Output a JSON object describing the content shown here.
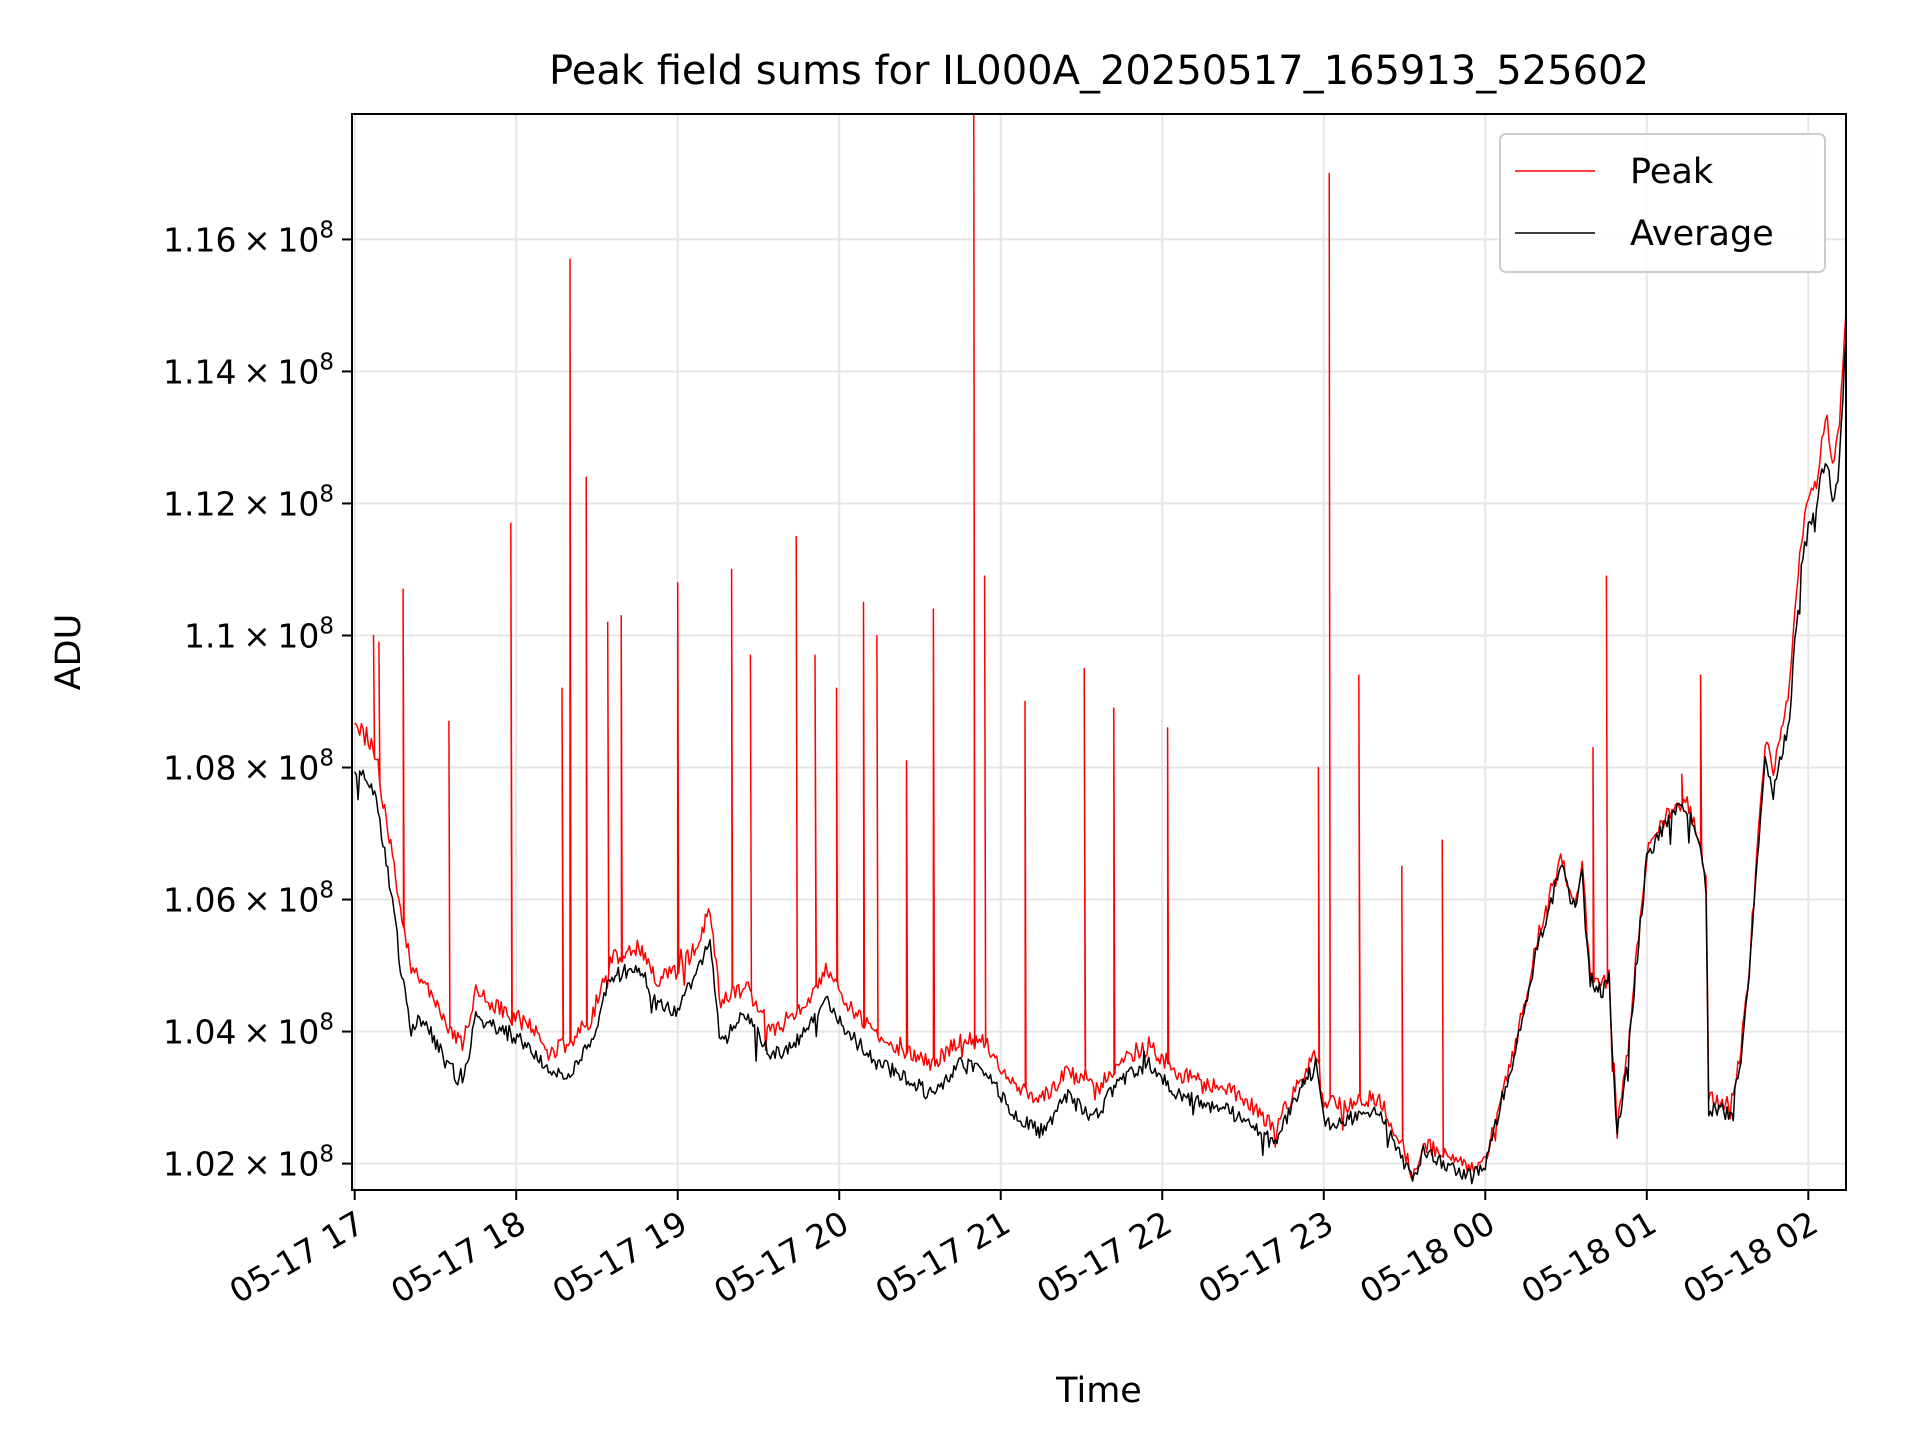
{
  "chart_data": {
    "type": "line",
    "title": "Peak field sums for IL000A_20250517_165913_525602",
    "xlabel": "Time",
    "ylabel": "ADU",
    "xlim": [
      "2025-05-17 16:59",
      "2025-05-18 02:14"
    ],
    "ylim": [
      101600000,
      117900000
    ],
    "x_ticks": [
      "2025-05-17 17:00",
      "2025-05-17 18:00",
      "2025-05-17 19:00",
      "2025-05-17 20:00",
      "2025-05-17 21:00",
      "2025-05-17 22:00",
      "2025-05-17 23:00",
      "2025-05-18 00:00",
      "2025-05-18 01:00",
      "2025-05-18 02:00"
    ],
    "x_tick_labels": [
      "05-17 17",
      "05-17 18",
      "05-17 19",
      "05-17 20",
      "05-17 21",
      "05-17 22",
      "05-17 23",
      "05-18 00",
      "05-18 01",
      "05-18 02"
    ],
    "y_ticks": [
      102000000,
      104000000,
      106000000,
      108000000,
      110000000,
      112000000,
      114000000,
      116000000
    ],
    "y_tick_labels": [
      {
        "mantissa": "1.02",
        "base": "10",
        "exp": "8"
      },
      {
        "mantissa": "1.04",
        "base": "10",
        "exp": "8"
      },
      {
        "mantissa": "1.06",
        "base": "10",
        "exp": "8"
      },
      {
        "mantissa": "1.08",
        "base": "10",
        "exp": "8"
      },
      {
        "mantissa": "1.1",
        "base": "10",
        "exp": "8"
      },
      {
        "mantissa": "1.12",
        "base": "10",
        "exp": "8"
      },
      {
        "mantissa": "1.14",
        "base": "10",
        "exp": "8"
      },
      {
        "mantissa": "1.16",
        "base": "10",
        "exp": "8"
      }
    ],
    "grid": true,
    "legend_position": "top-right",
    "series": [
      {
        "name": "Peak",
        "color": "#ff0000",
        "points": [
          [
            "2025-05-17 17:00",
            108700000
          ],
          [
            "2025-05-17 17:05",
            108400000
          ],
          [
            "2025-05-17 17:08",
            108200000
          ],
          [
            "2025-05-17 17:10",
            107600000
          ],
          [
            "2025-05-17 17:14",
            106700000
          ],
          [
            "2025-05-17 17:17",
            105800000
          ],
          [
            "2025-05-17 17:21",
            105000000
          ],
          [
            "2025-05-17 17:26",
            104700000
          ],
          [
            "2025-05-17 17:33",
            104200000
          ],
          [
            "2025-05-17 17:40",
            103800000
          ],
          [
            "2025-05-17 17:45",
            104600000
          ],
          [
            "2025-05-17 17:55",
            104300000
          ],
          [
            "2025-05-17 18:05",
            104100000
          ],
          [
            "2025-05-17 18:12",
            103700000
          ],
          [
            "2025-05-17 18:20",
            103800000
          ],
          [
            "2025-05-17 18:28",
            104200000
          ],
          [
            "2025-05-17 18:35",
            105100000
          ],
          [
            "2025-05-17 18:45",
            105300000
          ],
          [
            "2025-05-17 18:52",
            104800000
          ],
          [
            "2025-05-17 19:00",
            104900000
          ],
          [
            "2025-05-17 19:08",
            105400000
          ],
          [
            "2025-05-17 19:12",
            105900000
          ],
          [
            "2025-05-17 19:16",
            104400000
          ],
          [
            "2025-05-17 19:25",
            104700000
          ],
          [
            "2025-05-17 19:35",
            104000000
          ],
          [
            "2025-05-17 19:45",
            104300000
          ],
          [
            "2025-05-17 19:55",
            104900000
          ],
          [
            "2025-05-17 20:05",
            104300000
          ],
          [
            "2025-05-17 20:15",
            103900000
          ],
          [
            "2025-05-17 20:25",
            103700000
          ],
          [
            "2025-05-17 20:35",
            103500000
          ],
          [
            "2025-05-17 20:45",
            103900000
          ],
          [
            "2025-05-17 20:55",
            103800000
          ],
          [
            "2025-05-17 21:05",
            103200000
          ],
          [
            "2025-05-17 21:15",
            103000000
          ],
          [
            "2025-05-17 21:25",
            103400000
          ],
          [
            "2025-05-17 21:35",
            103100000
          ],
          [
            "2025-05-17 21:45",
            103600000
          ],
          [
            "2025-05-17 21:55",
            103800000
          ],
          [
            "2025-05-17 22:05",
            103400000
          ],
          [
            "2025-05-17 22:15",
            103200000
          ],
          [
            "2025-05-17 22:25",
            103100000
          ],
          [
            "2025-05-17 22:35",
            102800000
          ],
          [
            "2025-05-17 22:42",
            102500000
          ],
          [
            "2025-05-17 22:50",
            103200000
          ],
          [
            "2025-05-17 22:57",
            103700000
          ],
          [
            "2025-05-17 23:00",
            102900000
          ],
          [
            "2025-05-17 23:10",
            102900000
          ],
          [
            "2025-05-17 23:20",
            103000000
          ],
          [
            "2025-05-17 23:28",
            102400000
          ],
          [
            "2025-05-17 23:33",
            101800000
          ],
          [
            "2025-05-17 23:37",
            102300000
          ],
          [
            "2025-05-17 23:45",
            102100000
          ],
          [
            "2025-05-17 23:55",
            101900000
          ],
          [
            "2025-05-18 00:00",
            102100000
          ],
          [
            "2025-05-18 00:05",
            102900000
          ],
          [
            "2025-05-18 00:10",
            103600000
          ],
          [
            "2025-05-18 00:15",
            104500000
          ],
          [
            "2025-05-18 00:20",
            105500000
          ],
          [
            "2025-05-18 00:25",
            106100000
          ],
          [
            "2025-05-18 00:28",
            106700000
          ],
          [
            "2025-05-18 00:31",
            106200000
          ],
          [
            "2025-05-18 00:34",
            106000000
          ],
          [
            "2025-05-18 00:36",
            106500000
          ],
          [
            "2025-05-18 00:39",
            104900000
          ],
          [
            "2025-05-18 00:43",
            104700000
          ],
          [
            "2025-05-18 00:46",
            104800000
          ],
          [
            "2025-05-18 00:49",
            102500000
          ],
          [
            "2025-05-18 00:53",
            103700000
          ],
          [
            "2025-05-18 00:57",
            105500000
          ],
          [
            "2025-05-18 01:00",
            106700000
          ],
          [
            "2025-05-18 01:05",
            107100000
          ],
          [
            "2025-05-18 01:10",
            107400000
          ],
          [
            "2025-05-18 01:15",
            107500000
          ],
          [
            "2025-05-18 01:20",
            106800000
          ],
          [
            "2025-05-18 01:22",
            106300000
          ],
          [
            "2025-05-18 01:23",
            103000000
          ],
          [
            "2025-05-18 01:28",
            102900000
          ],
          [
            "2025-05-18 01:31",
            102800000
          ],
          [
            "2025-05-18 01:35",
            103700000
          ],
          [
            "2025-05-18 01:38",
            105000000
          ],
          [
            "2025-05-18 01:41",
            106700000
          ],
          [
            "2025-05-18 01:44",
            108400000
          ],
          [
            "2025-05-18 01:47",
            108000000
          ],
          [
            "2025-05-18 01:50",
            108600000
          ],
          [
            "2025-05-18 01:53",
            109200000
          ],
          [
            "2025-05-18 01:55",
            110400000
          ],
          [
            "2025-05-18 01:58",
            111600000
          ],
          [
            "2025-05-18 02:00",
            112000000
          ],
          [
            "2025-05-18 02:03",
            112300000
          ],
          [
            "2025-05-18 02:05",
            112900000
          ],
          [
            "2025-05-18 02:07",
            113300000
          ],
          [
            "2025-05-18 02:09",
            112600000
          ],
          [
            "2025-05-18 02:11",
            113000000
          ],
          [
            "2025-05-18 02:14",
            114900000
          ]
        ],
        "spikes": [
          [
            "2025-05-17 17:07",
            110000000
          ],
          [
            "2025-05-17 17:09",
            109900000
          ],
          [
            "2025-05-17 17:18",
            110700000
          ],
          [
            "2025-05-17 17:35",
            108700000
          ],
          [
            "2025-05-17 17:58",
            111700000
          ],
          [
            "2025-05-17 18:17",
            109200000
          ],
          [
            "2025-05-17 18:20",
            115700000
          ],
          [
            "2025-05-17 18:26",
            112400000
          ],
          [
            "2025-05-17 18:34",
            110200000
          ],
          [
            "2025-05-17 18:39",
            110300000
          ],
          [
            "2025-05-17 19:00",
            110800000
          ],
          [
            "2025-05-17 19:20",
            111000000
          ],
          [
            "2025-05-17 19:27",
            109700000
          ],
          [
            "2025-05-17 19:44",
            111500000
          ],
          [
            "2025-05-17 19:51",
            109700000
          ],
          [
            "2025-05-17 19:59",
            109200000
          ],
          [
            "2025-05-17 20:09",
            110500000
          ],
          [
            "2025-05-17 20:14",
            110000000
          ],
          [
            "2025-05-17 20:25",
            108100000
          ],
          [
            "2025-05-17 20:35",
            110400000
          ],
          [
            "2025-05-17 20:50",
            117900000
          ],
          [
            "2025-05-17 20:54",
            110900000
          ],
          [
            "2025-05-17 21:09",
            109000000
          ],
          [
            "2025-05-17 21:31",
            109500000
          ],
          [
            "2025-05-17 21:42",
            108900000
          ],
          [
            "2025-05-17 22:02",
            108600000
          ],
          [
            "2025-05-17 22:58",
            108000000
          ],
          [
            "2025-05-17 23:02",
            117000000
          ],
          [
            "2025-05-17 23:13",
            109400000
          ],
          [
            "2025-05-17 23:29",
            106500000
          ],
          [
            "2025-05-17 23:44",
            106900000
          ],
          [
            "2025-05-18 00:40",
            108300000
          ],
          [
            "2025-05-18 00:45",
            110900000
          ],
          [
            "2025-05-18 01:13",
            107900000
          ],
          [
            "2025-05-18 01:20",
            109400000
          ]
        ]
      },
      {
        "name": "Average",
        "color": "#000000",
        "points": [
          [
            "2025-05-17 17:00",
            108000000
          ],
          [
            "2025-05-17 17:05",
            107800000
          ],
          [
            "2025-05-17 17:08",
            107500000
          ],
          [
            "2025-05-17 17:10",
            107000000
          ],
          [
            "2025-05-17 17:14",
            106000000
          ],
          [
            "2025-05-17 17:17",
            105000000
          ],
          [
            "2025-05-17 17:21",
            104000000
          ],
          [
            "2025-05-17 17:26",
            104200000
          ],
          [
            "2025-05-17 17:33",
            103600000
          ],
          [
            "2025-05-17 17:40",
            103200000
          ],
          [
            "2025-05-17 17:45",
            104200000
          ],
          [
            "2025-05-17 17:55",
            104000000
          ],
          [
            "2025-05-17 18:05",
            103800000
          ],
          [
            "2025-05-17 18:12",
            103400000
          ],
          [
            "2025-05-17 18:20",
            103300000
          ],
          [
            "2025-05-17 18:28",
            103900000
          ],
          [
            "2025-05-17 18:35",
            104800000
          ],
          [
            "2025-05-17 18:45",
            105000000
          ],
          [
            "2025-05-17 18:52",
            104400000
          ],
          [
            "2025-05-17 19:00",
            104300000
          ],
          [
            "2025-05-17 19:08",
            105000000
          ],
          [
            "2025-05-17 19:12",
            105400000
          ],
          [
            "2025-05-17 19:16",
            103800000
          ],
          [
            "2025-05-17 19:25",
            104300000
          ],
          [
            "2025-05-17 19:35",
            103600000
          ],
          [
            "2025-05-17 19:45",
            103900000
          ],
          [
            "2025-05-17 19:55",
            104500000
          ],
          [
            "2025-05-17 20:05",
            103900000
          ],
          [
            "2025-05-17 20:15",
            103500000
          ],
          [
            "2025-05-17 20:25",
            103300000
          ],
          [
            "2025-05-17 20:35",
            103000000
          ],
          [
            "2025-05-17 20:45",
            103500000
          ],
          [
            "2025-05-17 20:55",
            103400000
          ],
          [
            "2025-05-17 21:05",
            102700000
          ],
          [
            "2025-05-17 21:15",
            102500000
          ],
          [
            "2025-05-17 21:25",
            103000000
          ],
          [
            "2025-05-17 21:35",
            102700000
          ],
          [
            "2025-05-17 21:45",
            103300000
          ],
          [
            "2025-05-17 21:55",
            103500000
          ],
          [
            "2025-05-17 22:05",
            103100000
          ],
          [
            "2025-05-17 22:15",
            102900000
          ],
          [
            "2025-05-17 22:25",
            102800000
          ],
          [
            "2025-05-17 22:35",
            102500000
          ],
          [
            "2025-05-17 22:42",
            102300000
          ],
          [
            "2025-05-17 22:50",
            103000000
          ],
          [
            "2025-05-17 22:57",
            103500000
          ],
          [
            "2025-05-17 23:00",
            102600000
          ],
          [
            "2025-05-17 23:10",
            102700000
          ],
          [
            "2025-05-17 23:20",
            102800000
          ],
          [
            "2025-05-17 23:28",
            102200000
          ],
          [
            "2025-05-17 23:33",
            101700000
          ],
          [
            "2025-05-17 23:37",
            102200000
          ],
          [
            "2025-05-17 23:45",
            102000000
          ],
          [
            "2025-05-17 23:55",
            101800000
          ],
          [
            "2025-05-18 00:00",
            102000000
          ],
          [
            "2025-05-18 00:05",
            102800000
          ],
          [
            "2025-05-18 00:10",
            103500000
          ],
          [
            "2025-05-18 00:15",
            104400000
          ],
          [
            "2025-05-18 00:20",
            105400000
          ],
          [
            "2025-05-18 00:25",
            106000000
          ],
          [
            "2025-05-18 00:28",
            106600000
          ],
          [
            "2025-05-18 00:31",
            106100000
          ],
          [
            "2025-05-18 00:34",
            105900000
          ],
          [
            "2025-05-18 00:36",
            106400000
          ],
          [
            "2025-05-18 00:39",
            104800000
          ],
          [
            "2025-05-18 00:43",
            104600000
          ],
          [
            "2025-05-18 00:46",
            104700000
          ],
          [
            "2025-05-18 00:49",
            102400000
          ],
          [
            "2025-05-18 00:53",
            103600000
          ],
          [
            "2025-05-18 00:57",
            105400000
          ],
          [
            "2025-05-18 01:00",
            106600000
          ],
          [
            "2025-05-18 01:05",
            107000000
          ],
          [
            "2025-05-18 01:10",
            107300000
          ],
          [
            "2025-05-18 01:15",
            107400000
          ],
          [
            "2025-05-18 01:20",
            106700000
          ],
          [
            "2025-05-18 01:22",
            106200000
          ],
          [
            "2025-05-18 01:23",
            102800000
          ],
          [
            "2025-05-18 01:28",
            102800000
          ],
          [
            "2025-05-18 01:31",
            102700000
          ],
          [
            "2025-05-18 01:35",
            103600000
          ],
          [
            "2025-05-18 01:38",
            104900000
          ],
          [
            "2025-05-18 01:41",
            106500000
          ],
          [
            "2025-05-18 01:44",
            108100000
          ],
          [
            "2025-05-18 01:47",
            107600000
          ],
          [
            "2025-05-18 01:50",
            108200000
          ],
          [
            "2025-05-18 01:53",
            108700000
          ],
          [
            "2025-05-18 01:55",
            110000000
          ],
          [
            "2025-05-18 01:58",
            111200000
          ],
          [
            "2025-05-18 02:00",
            111600000
          ],
          [
            "2025-05-18 02:03",
            112000000
          ],
          [
            "2025-05-18 02:05",
            112500000
          ],
          [
            "2025-05-18 02:07",
            112600000
          ],
          [
            "2025-05-18 02:09",
            112000000
          ],
          [
            "2025-05-18 02:11",
            112300000
          ],
          [
            "2025-05-18 02:14",
            114500000
          ]
        ]
      }
    ]
  }
}
